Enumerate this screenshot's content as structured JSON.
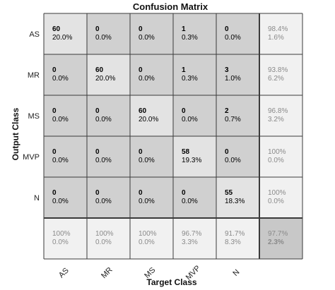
{
  "chart_data": {
    "type": "heatmap",
    "title": "Confusion Matrix",
    "xlabel": "Target Class",
    "ylabel": "Output Class",
    "classes": [
      "AS",
      "MR",
      "MS",
      "MVP",
      "N"
    ],
    "cells": [
      [
        {
          "count": "60",
          "pct": "20.0%"
        },
        {
          "count": "0",
          "pct": "0.0%"
        },
        {
          "count": "0",
          "pct": "0.0%"
        },
        {
          "count": "1",
          "pct": "0.3%"
        },
        {
          "count": "0",
          "pct": "0.0%"
        }
      ],
      [
        {
          "count": "0",
          "pct": "0.0%"
        },
        {
          "count": "60",
          "pct": "20.0%"
        },
        {
          "count": "0",
          "pct": "0.0%"
        },
        {
          "count": "1",
          "pct": "0.3%"
        },
        {
          "count": "3",
          "pct": "1.0%"
        }
      ],
      [
        {
          "count": "0",
          "pct": "0.0%"
        },
        {
          "count": "0",
          "pct": "0.0%"
        },
        {
          "count": "60",
          "pct": "20.0%"
        },
        {
          "count": "0",
          "pct": "0.0%"
        },
        {
          "count": "2",
          "pct": "0.7%"
        }
      ],
      [
        {
          "count": "0",
          "pct": "0.0%"
        },
        {
          "count": "0",
          "pct": "0.0%"
        },
        {
          "count": "0",
          "pct": "0.0%"
        },
        {
          "count": "58",
          "pct": "19.3%"
        },
        {
          "count": "0",
          "pct": "0.0%"
        }
      ],
      [
        {
          "count": "0",
          "pct": "0.0%"
        },
        {
          "count": "0",
          "pct": "0.0%"
        },
        {
          "count": "0",
          "pct": "0.0%"
        },
        {
          "count": "0",
          "pct": "0.0%"
        },
        {
          "count": "55",
          "pct": "18.3%"
        }
      ]
    ],
    "row_summary": [
      {
        "correct": "98.4%",
        "error": "1.6%"
      },
      {
        "correct": "93.8%",
        "error": "6.2%"
      },
      {
        "correct": "96.8%",
        "error": "3.2%"
      },
      {
        "correct": "100%",
        "error": "0.0%"
      },
      {
        "correct": "100%",
        "error": "0.0%"
      }
    ],
    "col_summary": [
      {
        "correct": "100%",
        "error": "0.0%"
      },
      {
        "correct": "100%",
        "error": "0.0%"
      },
      {
        "correct": "100%",
        "error": "0.0%"
      },
      {
        "correct": "96.7%",
        "error": "3.3%"
      },
      {
        "correct": "91.7%",
        "error": "8.3%"
      }
    ],
    "total": {
      "correct": "97.7%",
      "error": "2.3%"
    },
    "colors": {
      "diagonal": "#e3e3e3",
      "off_diagonal": "#d0d0d0",
      "summary": "#f1f1f1",
      "total": "#c8c8c8",
      "grid": "#3a3a3a"
    }
  }
}
